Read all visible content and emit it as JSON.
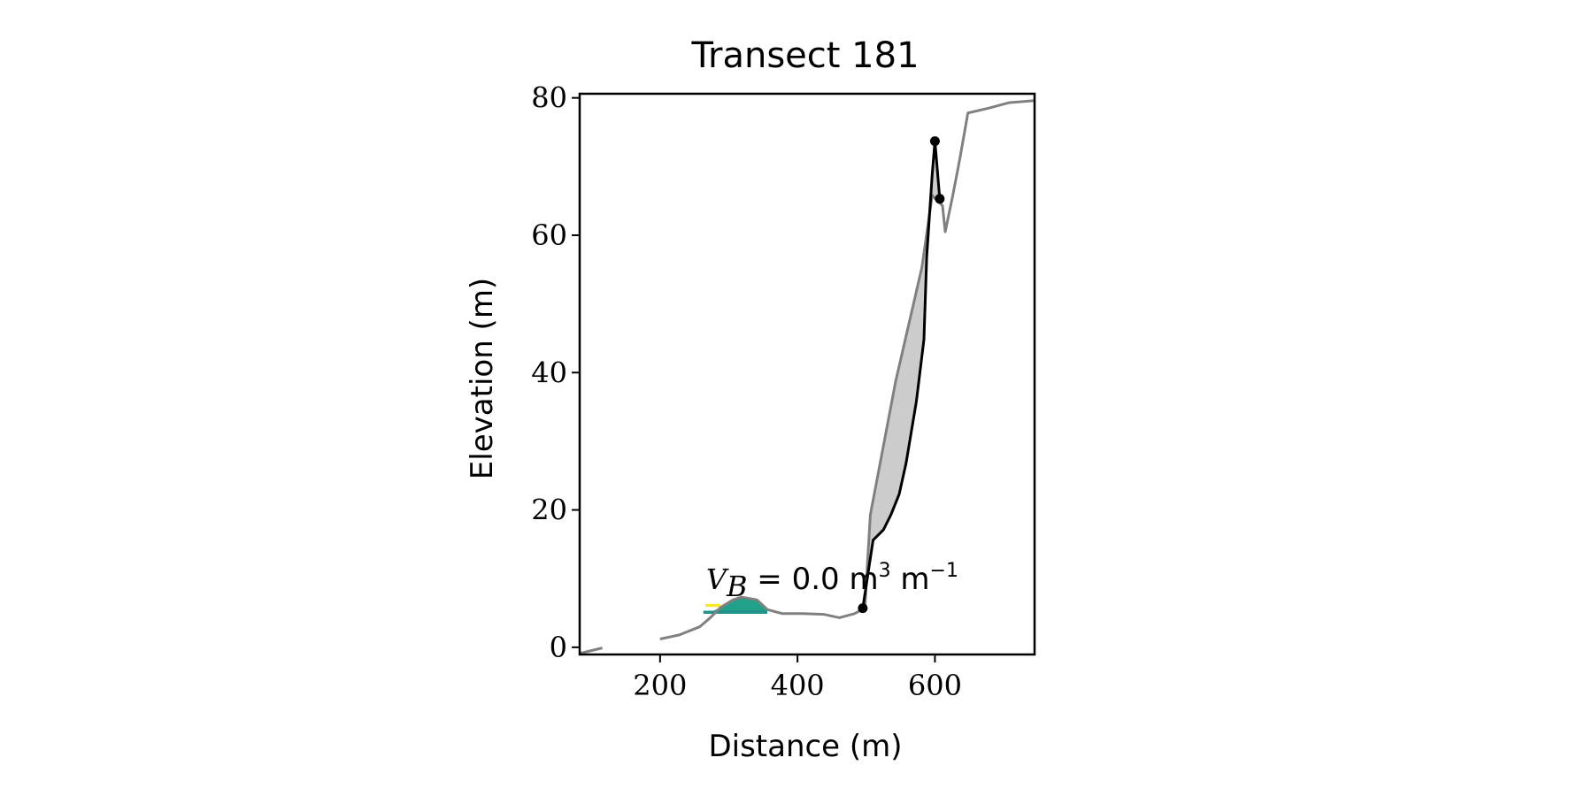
{
  "chart_data": {
    "type": "line",
    "title": "Transect 181",
    "xlabel": "Distance (m)",
    "ylabel": "Elevation (m)",
    "xlim": [
      83,
      745
    ],
    "ylim": [
      -1.05,
      80.6
    ],
    "xticks": [
      200,
      400,
      600
    ],
    "yticks": [
      0,
      20,
      40,
      60,
      80
    ],
    "series": [
      {
        "color": "#808080",
        "x": [
          83,
          116,
          150,
          200,
          228,
          258,
          273,
          288,
          306,
          318,
          341,
          356,
          378,
          408,
          438,
          461,
          483,
          498,
          506,
          543,
          581,
          596,
          611,
          615,
          626,
          636,
          648,
          678,
          708,
          745
        ],
        "values": [
          -0.9,
          -0.1,
          null,
          1.2,
          1.8,
          3,
          4.3,
          5.8,
          6.9,
          7.3,
          6.9,
          5.5,
          4.9,
          4.9,
          4.8,
          4.3,
          4.9,
          5.7,
          19.3,
          38.8,
          55.3,
          65.8,
          64.3,
          60.5,
          65.8,
          71,
          77.8,
          78.5,
          79.3,
          79.6
        ]
      },
      {
        "color": "#000000",
        "x": [
          495,
          510,
          525,
          536,
          548,
          558,
          573,
          584,
          588,
          596,
          600,
          607
        ],
        "values": [
          5.7,
          15.6,
          17.1,
          19.3,
          22.3,
          26.8,
          35.8,
          44.8,
          56.8,
          68.8,
          73.7,
          65.3
        ]
      }
    ],
    "points": {
      "color": "#000000",
      "x": [
        495,
        600,
        607
      ],
      "values": [
        5.7,
        73.7,
        65.3
      ]
    },
    "overlays": [
      {
        "color": "#fde725",
        "x": [
          266,
          288
        ],
        "values": [
          6.1,
          6.1
        ]
      },
      {
        "color": "#21918c",
        "x": [
          263,
          356
        ],
        "values": [
          5.1,
          5.1
        ]
      }
    ],
    "fill_color": "#cccccc",
    "bump_color": "#21a08a",
    "annotation": {
      "x": 267,
      "y": 8.5,
      "parts": [
        "V",
        "B",
        " = 0.0 m",
        "3",
        " m",
        "−1"
      ]
    }
  }
}
